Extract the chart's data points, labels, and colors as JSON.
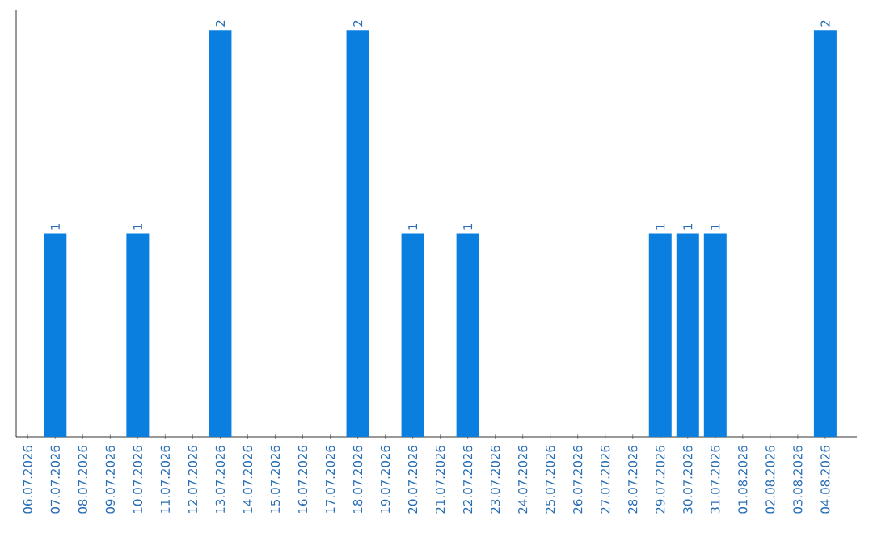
{
  "chart_data": {
    "type": "bar",
    "color": "#0a7fe0",
    "categories": [
      "06.07.2026",
      "07.07.2026",
      "08.07.2026",
      "09.07.2026",
      "10.07.2026",
      "11.07.2026",
      "12.07.2026",
      "13.07.2026",
      "14.07.2026",
      "15.07.2026",
      "16.07.2026",
      "17.07.2026",
      "18.07.2026",
      "19.07.2026",
      "20.07.2026",
      "21.07.2026",
      "22.07.2026",
      "23.07.2026",
      "24.07.2026",
      "25.07.2026",
      "26.07.2026",
      "27.07.2026",
      "28.07.2026",
      "29.07.2026",
      "30.07.2026",
      "31.07.2026",
      "01.08.2026",
      "02.08.2026",
      "03.08.2026",
      "04.08.2026"
    ],
    "values": [
      0,
      1,
      0,
      0,
      1,
      0,
      0,
      2,
      0,
      0,
      0,
      0,
      2,
      0,
      1,
      0,
      1,
      0,
      0,
      0,
      0,
      0,
      0,
      1,
      1,
      1,
      0,
      0,
      0,
      2
    ],
    "value_labels": [
      null,
      "1",
      null,
      null,
      "1",
      null,
      null,
      "2",
      null,
      null,
      null,
      null,
      "2",
      null,
      "1",
      null,
      "1",
      null,
      null,
      null,
      null,
      null,
      null,
      "1",
      "1",
      "1",
      null,
      null,
      null,
      "2"
    ]
  }
}
